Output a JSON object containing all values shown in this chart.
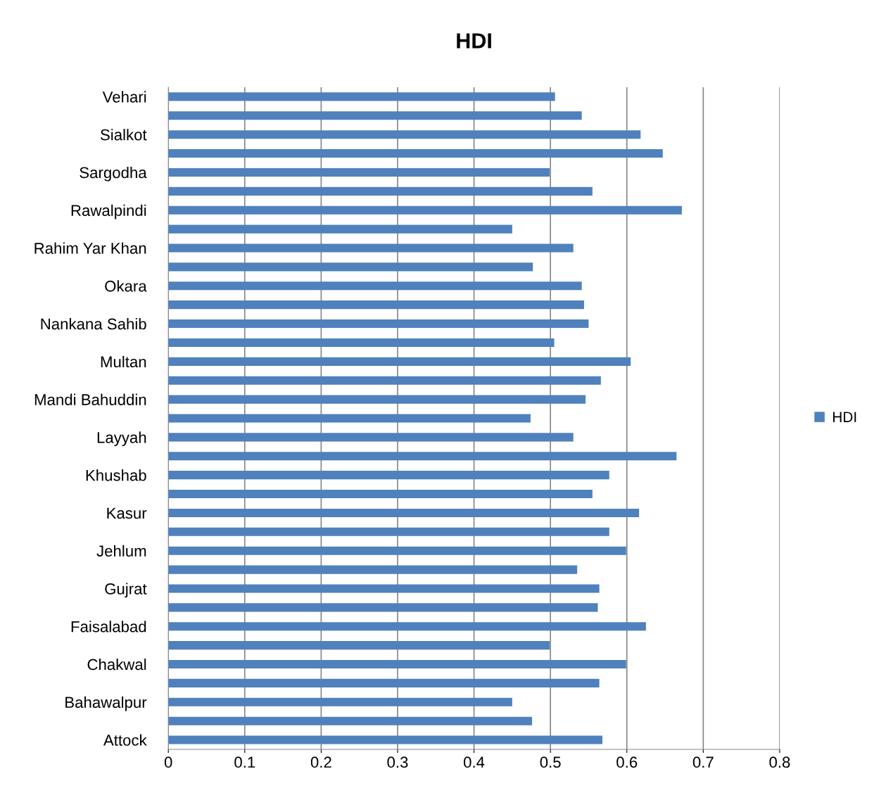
{
  "chart_data": {
    "type": "bar",
    "orientation": "horizontal",
    "title": "HDI",
    "categories": [
      "Vehari",
      null,
      "Sialkot",
      null,
      "Sargodha",
      null,
      "Rawalpindi",
      null,
      "Rahim Yar Khan",
      null,
      "Okara",
      null,
      "Nankana Sahib",
      null,
      "Multan",
      null,
      "Mandi Bahuddin",
      null,
      "Layyah",
      null,
      "Khushab",
      null,
      "Kasur",
      null,
      "Jehlum",
      null,
      "Gujrat",
      null,
      "Faisalabad",
      null,
      "Chakwal",
      null,
      "Bahawalpur",
      null,
      "Attock"
    ],
    "series": [
      {
        "name": "HDI",
        "color": "#4f81bd",
        "values": [
          0.506,
          0.541,
          0.618,
          0.647,
          0.499,
          0.555,
          0.672,
          0.45,
          0.53,
          0.477,
          0.541,
          0.544,
          0.55,
          0.505,
          0.605,
          0.566,
          0.546,
          0.474,
          0.53,
          0.665,
          0.577,
          0.555,
          0.616,
          0.577,
          0.599,
          0.535,
          0.564,
          0.562,
          0.625,
          0.499,
          0.599,
          0.564,
          0.45,
          0.476,
          0.568
        ]
      }
    ],
    "xlim": [
      0,
      0.8
    ],
    "xticks": [
      0,
      0.1,
      0.2,
      0.3,
      0.4,
      0.5,
      0.6,
      0.7,
      0.8
    ],
    "grid": "x",
    "legend": "right"
  }
}
